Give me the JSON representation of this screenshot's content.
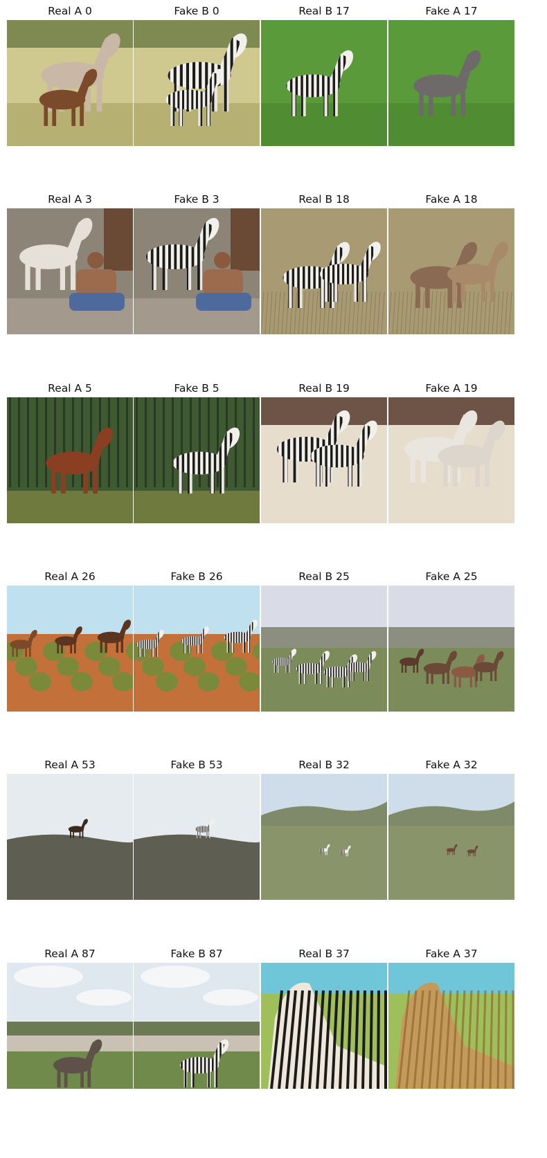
{
  "figure": {
    "rows": [
      [
        {
          "title": "Real A 0",
          "scene": "horse-mare-foal",
          "subject": "horse"
        },
        {
          "title": "Fake B 0",
          "scene": "horse-mare-foal",
          "subject": "zebra"
        },
        {
          "title": "Real B 17",
          "scene": "lone-animal-green",
          "subject": "zebra"
        },
        {
          "title": "Fake A 17",
          "scene": "lone-animal-green",
          "subject": "horse"
        }
      ],
      [
        {
          "title": "Real A 3",
          "scene": "horses-and-man",
          "subject": "horse"
        },
        {
          "title": "Fake B 3",
          "scene": "horses-and-man",
          "subject": "zebra"
        },
        {
          "title": "Real B 18",
          "scene": "pair-dry-grass",
          "subject": "zebra"
        },
        {
          "title": "Fake A 18",
          "scene": "pair-dry-grass",
          "subject": "horse"
        }
      ],
      [
        {
          "title": "Real A 5",
          "scene": "pinto-forest",
          "subject": "horse"
        },
        {
          "title": "Fake B 5",
          "scene": "pinto-forest",
          "subject": "zebra"
        },
        {
          "title": "Real B 19",
          "scene": "pair-sandy",
          "subject": "zebra"
        },
        {
          "title": "Fake A 19",
          "scene": "pair-sandy",
          "subject": "horse"
        }
      ],
      [
        {
          "title": "Real A 26",
          "scene": "outback-scrub",
          "subject": "horse"
        },
        {
          "title": "Fake B 26",
          "scene": "outback-scrub",
          "subject": "zebra"
        },
        {
          "title": "Real B 25",
          "scene": "savanna-herd",
          "subject": "zebra"
        },
        {
          "title": "Fake A 25",
          "scene": "savanna-herd",
          "subject": "horse"
        }
      ],
      [
        {
          "title": "Real A 53",
          "scene": "hill-silhouette",
          "subject": "horse"
        },
        {
          "title": "Fake B 53",
          "scene": "hill-silhouette",
          "subject": "zebra"
        },
        {
          "title": "Real B 32",
          "scene": "valley-far",
          "subject": "zebra"
        },
        {
          "title": "Fake A 32",
          "scene": "valley-far",
          "subject": "horse"
        }
      ],
      [
        {
          "title": "Real A 87",
          "scene": "badlands-grazing",
          "subject": "horse"
        },
        {
          "title": "Fake B 87",
          "scene": "badlands-grazing",
          "subject": "zebra"
        },
        {
          "title": "Real B 37",
          "scene": "zebra-closeup",
          "subject": "zebra"
        },
        {
          "title": "Fake A 37",
          "scene": "zebra-closeup",
          "subject": "horse"
        }
      ]
    ]
  }
}
